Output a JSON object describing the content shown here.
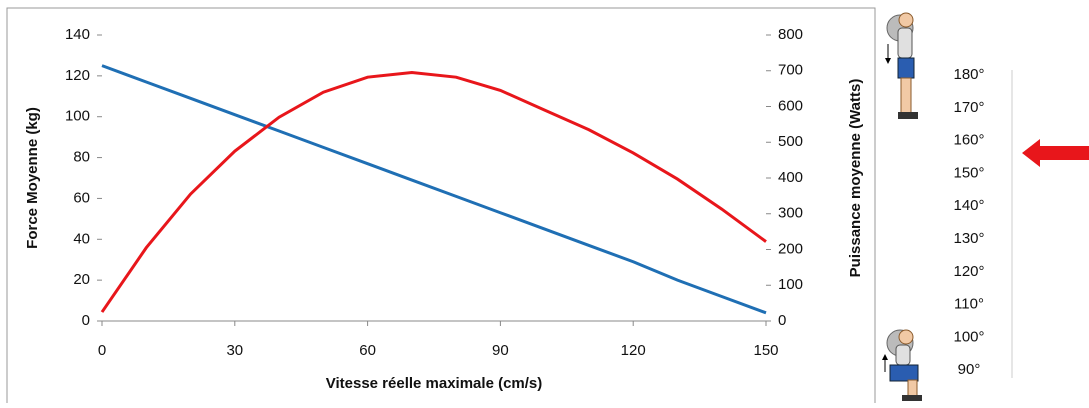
{
  "chart_data": {
    "type": "line",
    "x_label": "Vitesse réelle maximale (cm/s)",
    "y_label": "Force Moyenne (kg)",
    "y2_label": "Puissance moyenne (Watts)",
    "x": [
      0,
      10,
      20,
      30,
      40,
      50,
      60,
      70,
      80,
      90,
      100,
      110,
      120,
      130,
      140,
      150
    ],
    "series": [
      {
        "name": "Force",
        "color": "#1f6fb4",
        "values": [
          125,
          117,
          109,
          101,
          93,
          85,
          77,
          69,
          61,
          53,
          45,
          37,
          29,
          20,
          12,
          4
        ]
      },
      {
        "name": "Puissance",
        "color": "#e8161b",
        "axis": "y2",
        "values": [
          25,
          205,
          355,
          475,
          570,
          640,
          682,
          695,
          682,
          645,
          590,
          535,
          470,
          397,
          313,
          222
        ]
      }
    ],
    "xlim": [
      0,
      150
    ],
    "xticks": [
      0,
      30,
      60,
      90,
      120,
      150
    ],
    "ylim": [
      0,
      140
    ],
    "yticks": [
      0,
      20,
      40,
      60,
      80,
      100,
      120,
      140
    ],
    "y2lim": [
      0,
      800
    ],
    "y2ticks": [
      0,
      100,
      200,
      300,
      400,
      500,
      600,
      700,
      800
    ]
  },
  "angle_scale": [
    "180°",
    "170°",
    "160°",
    "150°",
    "140°",
    "130°",
    "120°",
    "110°",
    "100°",
    "90°"
  ]
}
